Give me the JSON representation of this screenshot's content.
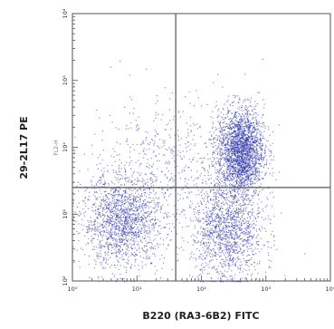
{
  "chart_data": {
    "type": "scatter",
    "title": "",
    "xlabel": "B220 (RA3-6B2) FITC",
    "ylabel": "29-2L17 PE",
    "x_inner_label": "",
    "y_inner_label": "FL2-H",
    "x_scale": "log",
    "y_scale": "log",
    "xlim": [
      1,
      10000
    ],
    "ylim": [
      1,
      10000
    ],
    "x_ticks": [
      {
        "value": 1,
        "label": "10⁰"
      },
      {
        "value": 10,
        "label": "10¹"
      },
      {
        "value": 100,
        "label": "10²"
      },
      {
        "value": 1000,
        "label": "10³"
      },
      {
        "value": 10000,
        "label": "10⁴"
      }
    ],
    "y_ticks": [
      {
        "value": 1,
        "label": "10⁰"
      },
      {
        "value": 10,
        "label": "10¹"
      },
      {
        "value": 100,
        "label": "10²"
      },
      {
        "value": 1000,
        "label": "10³"
      },
      {
        "value": 10000,
        "label": "10⁴"
      }
    ],
    "gates": {
      "x": 40,
      "y": 25
    },
    "grid": false,
    "point_color": "#2b33a6",
    "populations": [
      {
        "x_center": 6,
        "y_center": 8,
        "x_spread_decades": 0.32,
        "y_spread_decades": 0.35,
        "count": 1700
      },
      {
        "x_center": 400,
        "y_center": 90,
        "x_spread_decades": 0.18,
        "y_spread_decades": 0.32,
        "count": 2400
      },
      {
        "x_center": 250,
        "y_center": 6,
        "x_spread_decades": 0.28,
        "y_spread_decades": 0.4,
        "count": 1500
      },
      {
        "x_center": 30,
        "y_center": 60,
        "x_spread_decades": 0.6,
        "y_spread_decades": 0.5,
        "count": 500
      }
    ]
  }
}
